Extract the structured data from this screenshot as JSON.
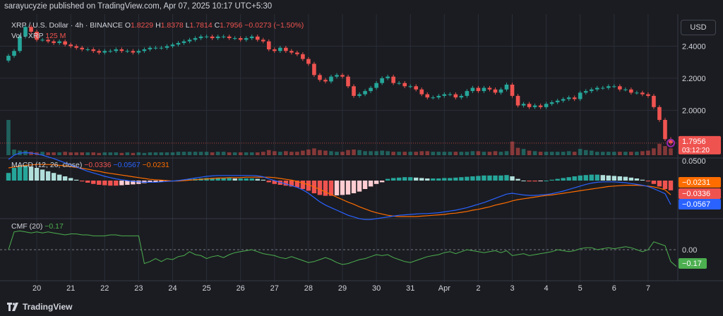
{
  "header": {
    "published_by": "sarayucyzie published on TradingView.com, Apr 07, 2025 10:17 UTC+5:30"
  },
  "legend": {
    "symbol": "XRP / U.S. Dollar · 4h · BINANCE",
    "ohlc": [
      {
        "k": "O",
        "v": "1.8229"
      },
      {
        "k": "H",
        "v": "1.8378"
      },
      {
        "k": "L",
        "v": "1.7814"
      },
      {
        "k": "C",
        "v": "1.7956"
      }
    ],
    "change": "−0.0273 (−1.50%)",
    "volume_label": "Vol · XRP",
    "volume_value": "125 M",
    "macd_label": "MACD (12, 26, close)",
    "macd_values": [
      "−0.0336",
      "−0.0567",
      "−0.0231"
    ],
    "cmf_label": "CMF (20)",
    "cmf_value": "−0.17"
  },
  "currency_button": "USD",
  "footer": {
    "brand": "TradingView"
  },
  "colors": {
    "up": "#26a69a",
    "down": "#ef5350",
    "macd_line": "#2962ff",
    "signal_line": "#ff6d00",
    "cmf_line": "#4caf50",
    "text_muted": "#b2b5be"
  },
  "chart_data": {
    "type": "candlestick",
    "price_axis": {
      "ticks": [
        {
          "label": "2.4000",
          "v": 2.4
        },
        {
          "label": "2.2000",
          "v": 2.2
        },
        {
          "label": "2.0000",
          "v": 2.0
        }
      ],
      "range": [
        1.72,
        2.6
      ],
      "last_price": "1.7956",
      "countdown": "03:12:20"
    },
    "x_axis": {
      "labels": [
        {
          "t": "20",
          "i": 5
        },
        {
          "t": "21",
          "i": 11
        },
        {
          "t": "22",
          "i": 17
        },
        {
          "t": "23",
          "i": 23
        },
        {
          "t": "24",
          "i": 29
        },
        {
          "t": "25",
          "i": 35
        },
        {
          "t": "26",
          "i": 41
        },
        {
          "t": "27",
          "i": 47
        },
        {
          "t": "28",
          "i": 53
        },
        {
          "t": "29",
          "i": 59
        },
        {
          "t": "30",
          "i": 65
        },
        {
          "t": "31",
          "i": 71
        },
        {
          "t": "Apr",
          "i": 77
        },
        {
          "t": "2",
          "i": 83
        },
        {
          "t": "3",
          "i": 89
        },
        {
          "t": "4",
          "i": 95
        },
        {
          "t": "5",
          "i": 101
        },
        {
          "t": "6",
          "i": 107
        },
        {
          "t": "7",
          "i": 113
        }
      ]
    },
    "candles_close": [
      2.34,
      2.37,
      2.46,
      2.52,
      2.49,
      2.44,
      2.44,
      2.43,
      2.42,
      2.43,
      2.41,
      2.4,
      2.39,
      2.38,
      2.38,
      2.37,
      2.36,
      2.37,
      2.37,
      2.38,
      2.37,
      2.37,
      2.36,
      2.37,
      2.38,
      2.39,
      2.39,
      2.39,
      2.4,
      2.41,
      2.42,
      2.43,
      2.44,
      2.45,
      2.46,
      2.46,
      2.45,
      2.46,
      2.46,
      2.45,
      2.45,
      2.44,
      2.45,
      2.46,
      2.44,
      2.43,
      2.38,
      2.37,
      2.39,
      2.37,
      2.36,
      2.35,
      2.32,
      2.29,
      2.22,
      2.19,
      2.18,
      2.21,
      2.22,
      2.21,
      2.15,
      2.09,
      2.1,
      2.12,
      2.14,
      2.17,
      2.2,
      2.21,
      2.17,
      2.17,
      2.15,
      2.15,
      2.13,
      2.1,
      2.08,
      2.08,
      2.09,
      2.1,
      2.1,
      2.08,
      2.09,
      2.12,
      2.14,
      2.12,
      2.14,
      2.13,
      2.11,
      2.13,
      2.16,
      2.09,
      2.03,
      2.04,
      2.02,
      2.03,
      2.02,
      2.04,
      2.05,
      2.06,
      2.07,
      2.08,
      2.07,
      2.11,
      2.12,
      2.13,
      2.14,
      2.14,
      2.15,
      2.15,
      2.13,
      2.13,
      2.11,
      2.11,
      2.1,
      2.09,
      2.02,
      1.94,
      1.82,
      1.7956
    ],
    "volume": [
      62,
      10,
      8,
      8,
      6,
      5,
      6,
      5,
      5,
      5,
      6,
      5,
      5,
      5,
      5,
      5,
      4,
      5,
      5,
      5,
      4,
      5,
      4,
      5,
      4,
      5,
      5,
      5,
      5,
      5,
      6,
      6,
      6,
      6,
      6,
      6,
      5,
      6,
      6,
      5,
      5,
      5,
      5,
      5,
      5,
      6,
      9,
      7,
      6,
      7,
      6,
      6,
      8,
      10,
      12,
      9,
      8,
      7,
      6,
      6,
      9,
      10,
      9,
      7,
      7,
      7,
      8,
      7,
      6,
      6,
      6,
      6,
      6,
      7,
      7,
      6,
      6,
      6,
      6,
      6,
      6,
      6,
      7,
      7,
      6,
      6,
      7,
      6,
      7,
      24,
      13,
      11,
      8,
      7,
      6,
      6,
      6,
      6,
      6,
      7,
      6,
      11,
      9,
      8,
      6,
      6,
      6,
      6,
      6,
      6,
      6,
      6,
      7,
      8,
      12,
      20,
      16,
      12
    ],
    "macd_hist": [
      0.018,
      0.03,
      0.035,
      0.036,
      0.033,
      0.03,
      0.026,
      0.022,
      0.018,
      0.014,
      0.01,
      0.006,
      0.002,
      -0.002,
      -0.005,
      -0.008,
      -0.01,
      -0.011,
      -0.012,
      -0.012,
      -0.011,
      -0.01,
      -0.009,
      -0.008,
      -0.006,
      -0.005,
      -0.004,
      -0.003,
      -0.002,
      0.0,
      0.001,
      0.002,
      0.003,
      0.004,
      0.005,
      0.006,
      0.006,
      0.006,
      0.006,
      0.006,
      0.005,
      0.005,
      0.005,
      0.005,
      0.004,
      0.002,
      -0.004,
      -0.008,
      -0.01,
      -0.012,
      -0.014,
      -0.016,
      -0.02,
      -0.024,
      -0.03,
      -0.034,
      -0.036,
      -0.036,
      -0.035,
      -0.034,
      -0.033,
      -0.03,
      -0.026,
      -0.02,
      -0.014,
      -0.008,
      -0.004,
      0.004,
      0.006,
      0.007,
      0.008,
      0.008,
      0.007,
      0.006,
      0.005,
      0.005,
      0.005,
      0.006,
      0.006,
      0.007,
      0.008,
      0.009,
      0.01,
      0.011,
      0.012,
      0.012,
      0.012,
      0.012,
      0.013,
      0.01,
      0.004,
      0.0,
      -0.002,
      -0.002,
      -0.001,
      0.0,
      0.002,
      0.004,
      0.006,
      0.008,
      0.01,
      0.012,
      0.013,
      0.014,
      0.014,
      0.013,
      0.012,
      0.011,
      0.01,
      0.009,
      0.007,
      0.005,
      0.002,
      -0.002,
      -0.008,
      -0.014,
      -0.02,
      -0.0231
    ],
    "macd_line": [
      0.05,
      0.06,
      0.065,
      0.066,
      0.065,
      0.063,
      0.06,
      0.056,
      0.052,
      0.047,
      0.042,
      0.037,
      0.032,
      0.027,
      0.022,
      0.018,
      0.014,
      0.01,
      0.007,
      0.004,
      0.002,
      0.0,
      -0.002,
      -0.003,
      -0.004,
      -0.004,
      -0.004,
      -0.003,
      -0.002,
      -0.001,
      0.0,
      0.002,
      0.004,
      0.006,
      0.008,
      0.01,
      0.011,
      0.012,
      0.012,
      0.012,
      0.012,
      0.012,
      0.012,
      0.012,
      0.011,
      0.009,
      0.004,
      0.0,
      -0.004,
      -0.008,
      -0.012,
      -0.016,
      -0.022,
      -0.03,
      -0.04,
      -0.05,
      -0.058,
      -0.064,
      -0.07,
      -0.076,
      -0.082,
      -0.086,
      -0.09,
      -0.092,
      -0.092,
      -0.09,
      -0.088,
      -0.086,
      -0.084,
      -0.082,
      -0.081,
      -0.08,
      -0.079,
      -0.078,
      -0.078,
      -0.077,
      -0.076,
      -0.074,
      -0.072,
      -0.07,
      -0.067,
      -0.064,
      -0.06,
      -0.056,
      -0.052,
      -0.047,
      -0.042,
      -0.037,
      -0.032,
      -0.03,
      -0.032,
      -0.034,
      -0.035,
      -0.035,
      -0.034,
      -0.033,
      -0.031,
      -0.028,
      -0.025,
      -0.021,
      -0.017,
      -0.013,
      -0.009,
      -0.006,
      -0.004,
      -0.003,
      -0.003,
      -0.003,
      -0.004,
      -0.005,
      -0.007,
      -0.009,
      -0.011,
      -0.014,
      -0.019,
      -0.025,
      -0.031,
      -0.0567
    ],
    "signal_line": [
      0.03,
      0.032,
      0.034,
      0.036,
      0.037,
      0.038,
      0.038,
      0.038,
      0.037,
      0.036,
      0.035,
      0.033,
      0.031,
      0.029,
      0.027,
      0.024,
      0.022,
      0.019,
      0.017,
      0.015,
      0.013,
      0.011,
      0.009,
      0.007,
      0.005,
      0.003,
      0.002,
      0.001,
      0.0,
      -0.001,
      -0.001,
      0.0,
      0.001,
      0.002,
      0.003,
      0.004,
      0.005,
      0.006,
      0.006,
      0.007,
      0.007,
      0.007,
      0.008,
      0.008,
      0.008,
      0.008,
      0.008,
      0.007,
      0.005,
      0.003,
      0.001,
      -0.002,
      -0.006,
      -0.01,
      -0.015,
      -0.021,
      -0.027,
      -0.033,
      -0.039,
      -0.045,
      -0.051,
      -0.056,
      -0.062,
      -0.067,
      -0.072,
      -0.076,
      -0.079,
      -0.082,
      -0.084,
      -0.085,
      -0.085,
      -0.085,
      -0.085,
      -0.084,
      -0.083,
      -0.082,
      -0.081,
      -0.08,
      -0.078,
      -0.077,
      -0.075,
      -0.073,
      -0.07,
      -0.068,
      -0.065,
      -0.062,
      -0.058,
      -0.055,
      -0.052,
      -0.048,
      -0.045,
      -0.043,
      -0.041,
      -0.039,
      -0.037,
      -0.035,
      -0.034,
      -0.032,
      -0.03,
      -0.028,
      -0.026,
      -0.024,
      -0.022,
      -0.02,
      -0.018,
      -0.016,
      -0.014,
      -0.013,
      -0.012,
      -0.011,
      -0.011,
      -0.011,
      -0.012,
      -0.013,
      -0.015,
      -0.018,
      -0.022,
      -0.0336
    ],
    "macd_axis": {
      "top_label": "0.0500"
    },
    "cmf": [
      0.0,
      0.18,
      0.19,
      0.18,
      0.17,
      0.18,
      0.17,
      0.18,
      0.17,
      0.16,
      0.15,
      0.16,
      0.16,
      0.15,
      0.15,
      0.14,
      0.14,
      0.14,
      0.15,
      0.15,
      0.14,
      0.14,
      0.14,
      0.14,
      -0.14,
      -0.12,
      -0.09,
      -0.12,
      -0.09,
      -0.1,
      -0.07,
      -0.06,
      -0.02,
      -0.05,
      -0.06,
      -0.09,
      -0.07,
      -0.06,
      -0.08,
      -0.05,
      -0.03,
      -0.02,
      -0.01,
      0.0,
      -0.02,
      -0.04,
      -0.05,
      -0.06,
      -0.08,
      -0.09,
      -0.07,
      -0.09,
      -0.11,
      -0.13,
      -0.12,
      -0.1,
      -0.08,
      -0.1,
      -0.13,
      -0.15,
      -0.14,
      -0.12,
      -0.1,
      -0.09,
      -0.07,
      -0.05,
      -0.06,
      -0.05,
      -0.08,
      -0.1,
      -0.12,
      -0.13,
      -0.11,
      -0.09,
      -0.07,
      -0.06,
      -0.05,
      -0.03,
      -0.02,
      -0.04,
      -0.02,
      0.0,
      -0.01,
      -0.02,
      -0.03,
      -0.02,
      -0.01,
      -0.03,
      -0.01,
      -0.06,
      -0.05,
      -0.04,
      -0.06,
      -0.05,
      -0.04,
      -0.03,
      -0.02,
      0.0,
      -0.01,
      -0.02,
      -0.01,
      0.01,
      0.02,
      0.02,
      0.0,
      0.01,
      0.02,
      0.01,
      0.02,
      0.03,
      0.02,
      0.0,
      -0.02,
      0.0,
      0.08,
      0.06,
      0.04,
      -0.12,
      -0.17
    ],
    "cmf_axis": {
      "zero_label": "0.00"
    }
  }
}
